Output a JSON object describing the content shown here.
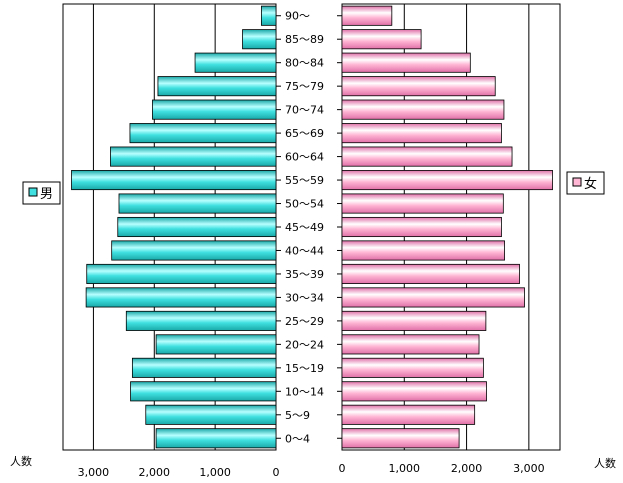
{
  "chart_data": {
    "type": "bar",
    "orientation": "horizontal",
    "layout": "population-pyramid",
    "categories": [
      "0～4",
      "5～9",
      "10～14",
      "15～19",
      "20～24",
      "25～29",
      "30～34",
      "35～39",
      "40～44",
      "45～49",
      "50～54",
      "55～59",
      "60～64",
      "65～69",
      "70～74",
      "75～79",
      "80～84",
      "85～89",
      "90～"
    ],
    "series": [
      {
        "name": "男",
        "side": "left",
        "color": "#40e0e0",
        "values": [
          1970,
          2140,
          2390,
          2360,
          1970,
          2460,
          3120,
          3110,
          2700,
          2600,
          2580,
          3360,
          2720,
          2400,
          2030,
          1940,
          1330,
          550,
          240
        ]
      },
      {
        "name": "女",
        "side": "right",
        "color": "#ffb6d4",
        "values": [
          1880,
          2130,
          2320,
          2270,
          2200,
          2310,
          2930,
          2850,
          2610,
          2560,
          2590,
          3380,
          2730,
          2560,
          2600,
          2460,
          2060,
          1270,
          800
        ]
      }
    ],
    "x_ticks_left": [
      "3,000",
      "2,000",
      "1,000",
      "0"
    ],
    "x_ticks_right": [
      "0",
      "1,000",
      "2,000",
      "3,000"
    ],
    "xlim": [
      0,
      3500
    ],
    "xlabel_left": "人数",
    "xlabel_right": "人数",
    "grid": true,
    "legend": [
      {
        "label": "男",
        "placement": "left"
      },
      {
        "label": "女",
        "placement": "right"
      }
    ]
  }
}
